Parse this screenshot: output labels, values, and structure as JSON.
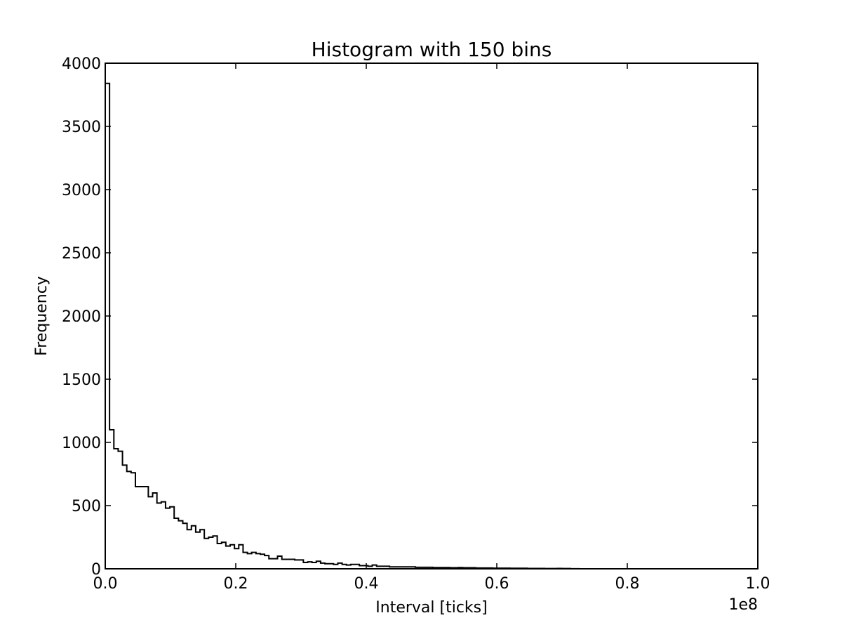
{
  "chart_data": {
    "type": "bar",
    "histtype": "step",
    "title": "Histogram with 150 bins",
    "xlabel": "Interval [ticks]",
    "ylabel": "Frequency",
    "x_offset_label": "1e8",
    "xlim": [
      0,
      100000000
    ],
    "ylim": [
      0,
      4000
    ],
    "xticks": [
      0,
      20000000,
      40000000,
      60000000,
      80000000,
      100000000
    ],
    "xtick_labels": [
      "0.0",
      "0.2",
      "0.4",
      "0.6",
      "0.8",
      "1.0"
    ],
    "yticks": [
      0,
      500,
      1000,
      1500,
      2000,
      2500,
      3000,
      3500,
      4000
    ],
    "ytick_labels": [
      "0",
      "500",
      "1000",
      "1500",
      "2000",
      "2500",
      "3000",
      "3500",
      "4000"
    ],
    "grid": false,
    "legend": "none",
    "bin_start": 0,
    "bin_width": 660000,
    "values": [
      3840,
      1100,
      950,
      930,
      820,
      770,
      760,
      650,
      650,
      650,
      570,
      600,
      520,
      530,
      480,
      490,
      400,
      380,
      360,
      310,
      340,
      290,
      310,
      240,
      250,
      260,
      200,
      210,
      180,
      190,
      160,
      190,
      130,
      120,
      130,
      120,
      115,
      105,
      80,
      80,
      100,
      75,
      75,
      75,
      70,
      70,
      50,
      55,
      50,
      60,
      45,
      40,
      40,
      35,
      45,
      35,
      30,
      35,
      35,
      25,
      25,
      20,
      30,
      20,
      20,
      20,
      15,
      15,
      15,
      15,
      15,
      15,
      12,
      12,
      12,
      12,
      10,
      10,
      10,
      10,
      8,
      8,
      10,
      8,
      8,
      8,
      6,
      6,
      6,
      6,
      5,
      5,
      5,
      5,
      4,
      4,
      4,
      4,
      3,
      3,
      3,
      3,
      2,
      2,
      2,
      3,
      2,
      2,
      1,
      1
    ]
  }
}
